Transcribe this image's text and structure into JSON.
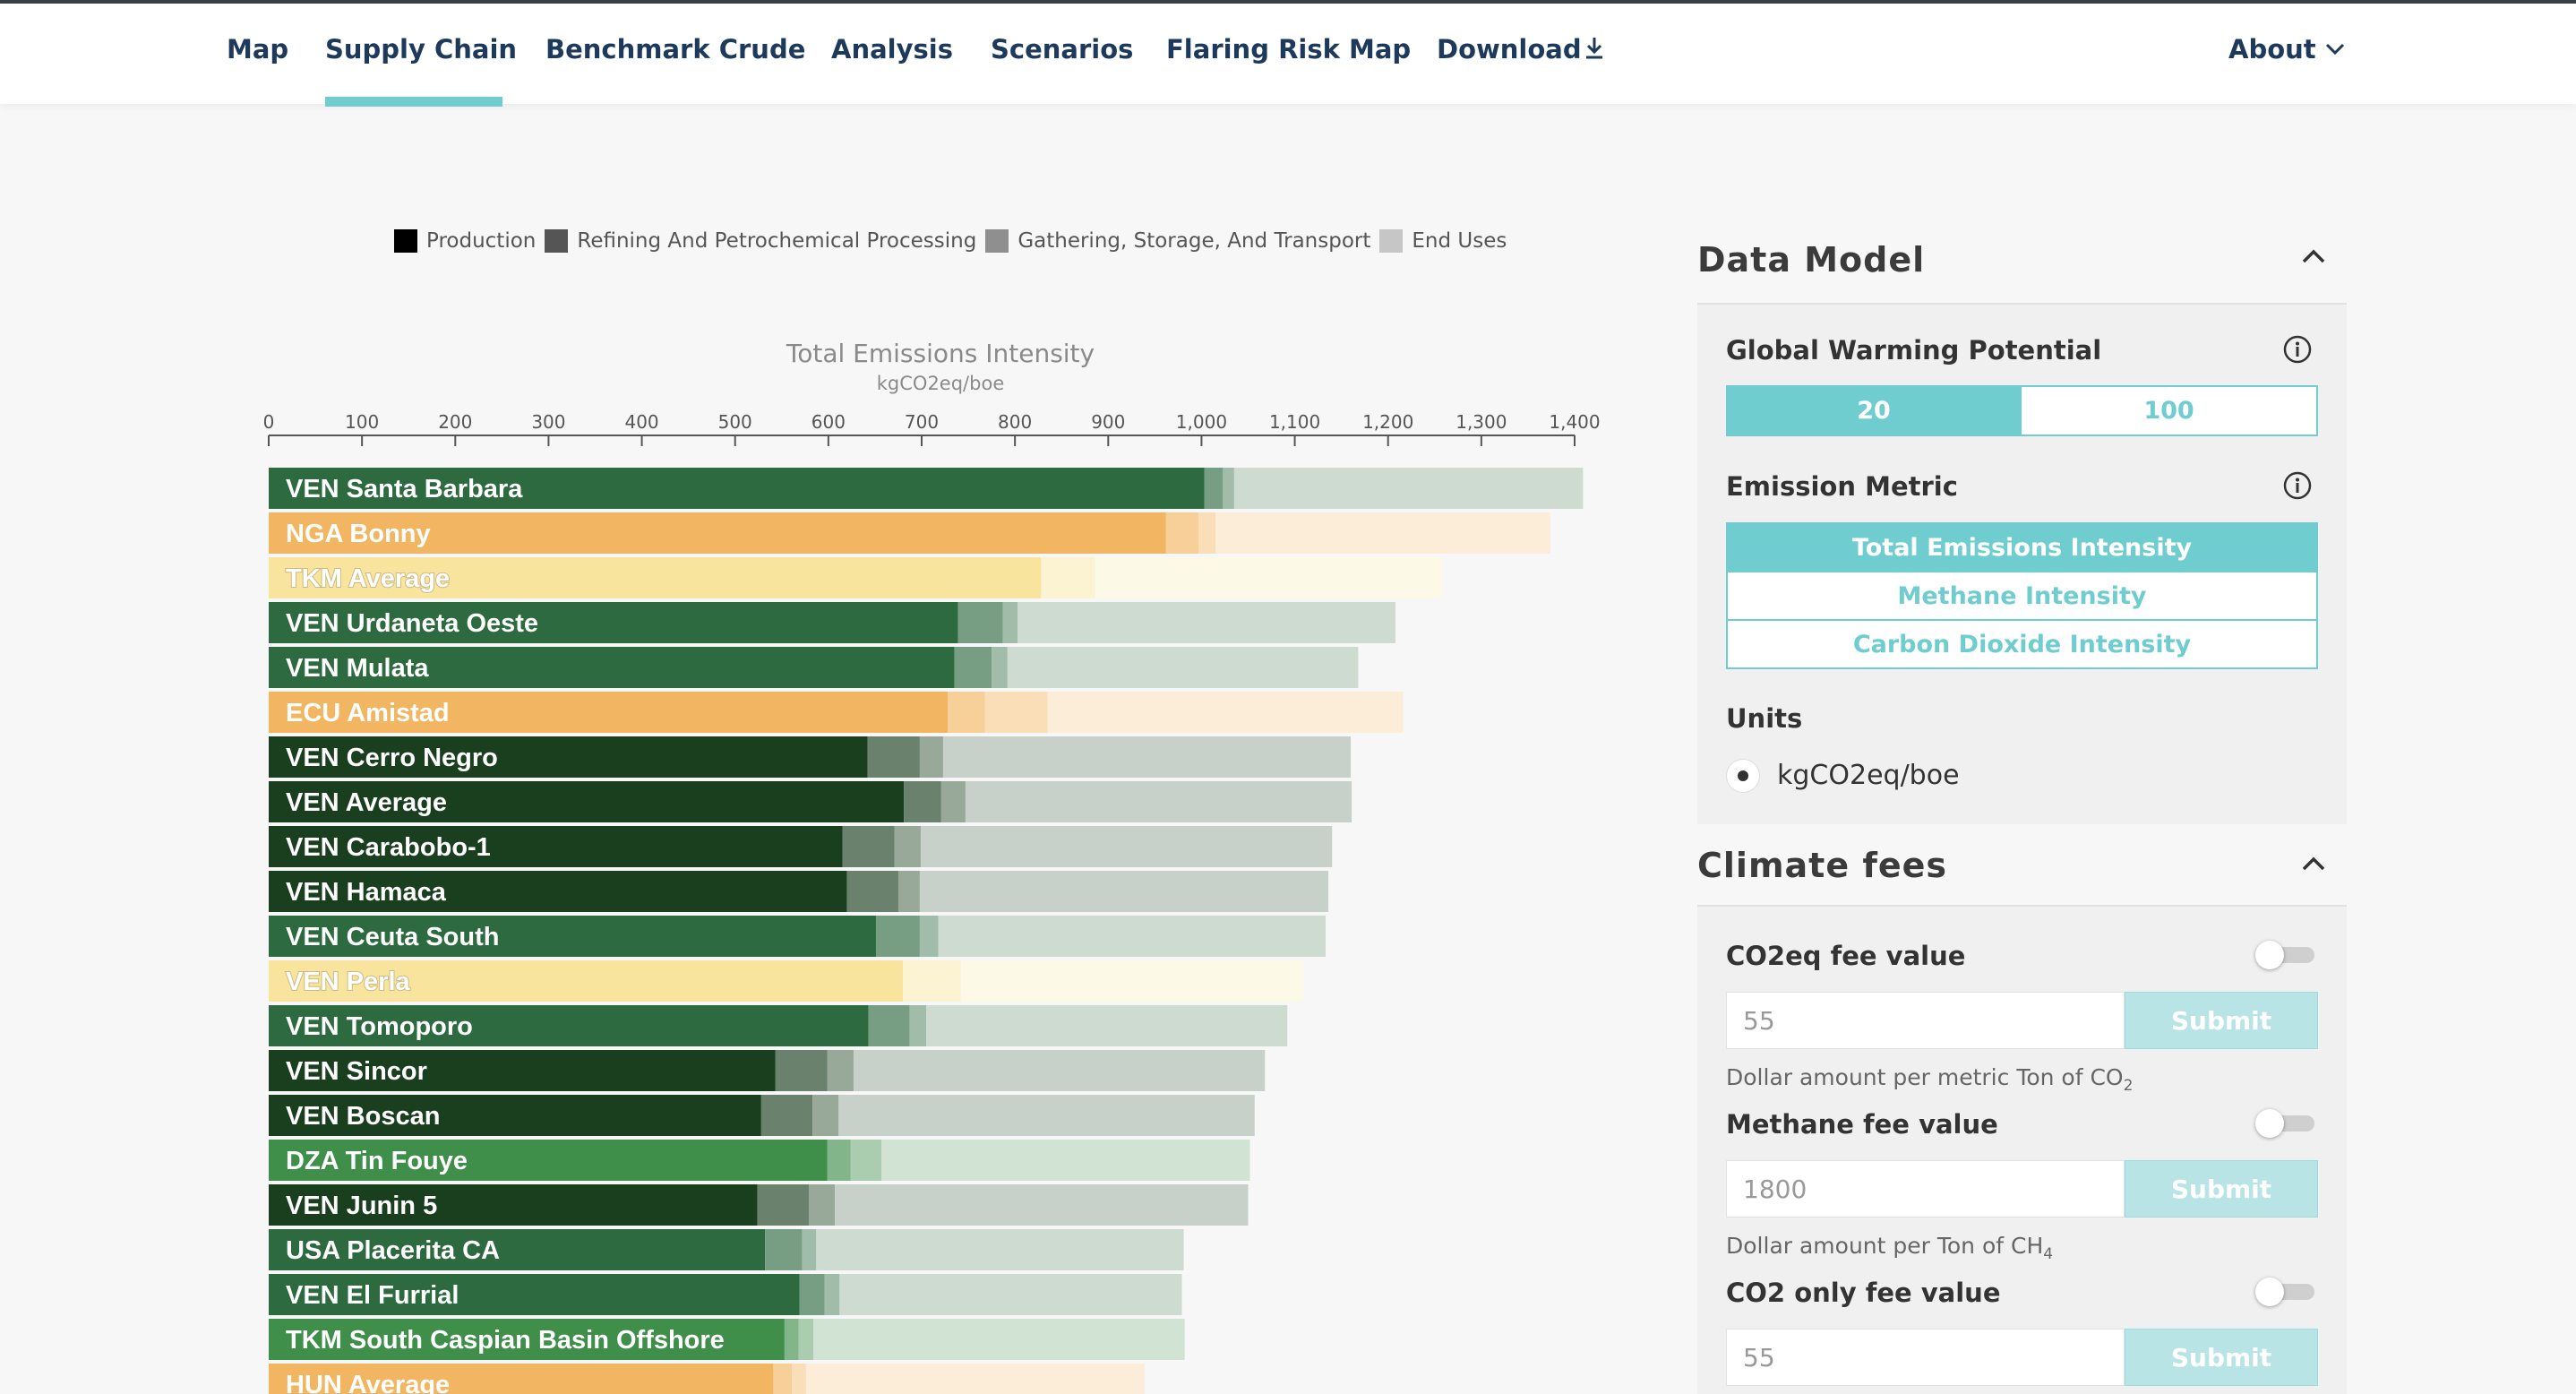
{
  "nav": {
    "items": [
      {
        "label": "Map"
      },
      {
        "label": "Supply Chain"
      },
      {
        "label": "Benchmark Crude"
      },
      {
        "label": "Analysis"
      },
      {
        "label": "Scenarios"
      },
      {
        "label": "Flaring Risk Map"
      },
      {
        "label": "Download"
      }
    ],
    "active": "Supply Chain",
    "about_label": "About"
  },
  "chart_data": {
    "type": "bar",
    "orientation": "horizontal",
    "stacked": true,
    "title": "Total Emissions Intensity",
    "subtitle": "kgCO2eq/boe",
    "xlim": [
      0,
      1400
    ],
    "x_ticks": [
      "0",
      "100",
      "200",
      "300",
      "400",
      "500",
      "600",
      "700",
      "800",
      "900",
      "1,000",
      "1,100",
      "1,200",
      "1,300",
      "1,400"
    ],
    "legend": [
      "Production",
      "Refining And Petrochemical Processing",
      "Gathering, Storage, And Transport",
      "End Uses"
    ],
    "legend_placement": "top",
    "categories": [
      "VEN Santa Barbara",
      "NGA Bonny",
      "TKM Average",
      "VEN Urdaneta Oeste",
      "VEN Mulata",
      "ECU Amistad",
      "VEN Cerro Negro",
      "VEN Average",
      "VEN Carabobo-1",
      "VEN Hamaca",
      "VEN Ceuta South",
      "VEN Perla",
      "VEN Tomoporo",
      "VEN Sincor",
      "VEN Boscan",
      "DZA Tin Fouye",
      "VEN Junin 5",
      "USA Placerita CA",
      "VEN El Furrial",
      "TKM South Caspian Basin Offshore",
      "HUN Average"
    ],
    "series": [
      {
        "name": "Production",
        "values": [
          1003,
          962,
          828,
          739,
          735,
          728,
          642,
          681,
          615,
          620,
          651,
          680,
          643,
          543,
          528,
          599,
          524,
          532,
          569,
          553,
          541
        ]
      },
      {
        "name": "Refining And Petrochemical Processing",
        "values": [
          20,
          35,
          0,
          48,
          40,
          40,
          56,
          40,
          56,
          55,
          47,
          0,
          44,
          56,
          55,
          25,
          55,
          40,
          27,
          15,
          20
        ]
      },
      {
        "name": "Gathering, Storage, And Transport",
        "values": [
          12,
          18,
          58,
          16,
          17,
          67,
          25,
          26,
          28,
          23,
          20,
          62,
          18,
          28,
          28,
          33,
          28,
          15,
          16,
          16,
          15
        ]
      },
      {
        "name": "End Uses",
        "values": [
          374,
          359,
          372,
          405,
          376,
          381,
          437,
          414,
          441,
          438,
          415,
          367,
          387,
          441,
          446,
          395,
          443,
          394,
          367,
          398,
          363
        ]
      }
    ],
    "bar_colors": [
      "#2d6a3f",
      "#f2b662",
      "#f8e49c",
      "#2d6a3f",
      "#2d6a3f",
      "#f2b662",
      "#1a3f1f",
      "#1a3f1f",
      "#1a3f1f",
      "#1a3f1f",
      "#2d6a3f",
      "#f8e49c",
      "#2d6a3f",
      "#1a3f1f",
      "#1a3f1f",
      "#3f8f4b",
      "#1a3f1f",
      "#2d6a3f",
      "#2d6a3f",
      "#3f8f4b",
      "#f2b662"
    ],
    "label_colors": [
      "#ffffff",
      "#ffffff",
      "#ffffff",
      "#ffffff",
      "#ffffff",
      "#ffffff",
      "#ffffff",
      "#ffffff",
      "#ffffff",
      "#ffffff",
      "#ffffff",
      "#ffffff",
      "#ffffff",
      "#ffffff",
      "#ffffff",
      "#ffffff",
      "#ffffff",
      "#ffffff",
      "#ffffff",
      "#ffffff",
      "#ffffff"
    ]
  },
  "legend_colors": [
    "#000000",
    "#555555",
    "#8f8f8f",
    "#c6c6c6"
  ],
  "data_model": {
    "title": "Data Model",
    "gwp_label": "Global Warming Potential",
    "gwp_options": [
      "20",
      "100"
    ],
    "gwp_selected": "20",
    "metric_label": "Emission Metric",
    "metric_options": [
      "Total Emissions Intensity",
      "Methane Intensity",
      "Carbon Dioxide Intensity"
    ],
    "metric_selected": "Total Emissions Intensity",
    "units_label": "Units",
    "units_value": "kgCO2eq/boe"
  },
  "climate_fees": {
    "title": "Climate fees",
    "fees": [
      {
        "label": "CO2eq fee value",
        "value": "55",
        "submit": "Submit",
        "help": "Dollar amount per metric Ton of CO",
        "help_sub": "2"
      },
      {
        "label": "Methane fee value",
        "value": "1800",
        "submit": "Submit",
        "help": "Dollar amount per Ton of CH",
        "help_sub": "4"
      },
      {
        "label": "CO2 only fee value",
        "value": "55",
        "submit": "Submit"
      }
    ]
  },
  "accent_color": "#6fcdd0"
}
